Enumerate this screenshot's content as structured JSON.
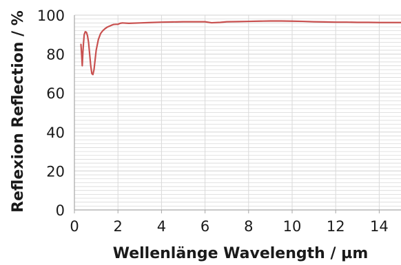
{
  "chart_data": {
    "type": "line",
    "title": "",
    "xlabel": "Wellenlänge Wavelength / µm",
    "ylabel": "Reflexion Reflection / %",
    "xlim": [
      0,
      15
    ],
    "ylim": [
      0,
      100
    ],
    "x_ticks": [
      0,
      2,
      4,
      6,
      8,
      10,
      12,
      14
    ],
    "x_tick_labels": [
      "0",
      "2",
      "4",
      "6",
      "8",
      "10",
      "12",
      "14"
    ],
    "y_ticks": [
      0,
      20,
      40,
      60,
      80,
      100
    ],
    "y_tick_labels": [
      "0",
      "20",
      "40",
      "60",
      "80",
      "100"
    ],
    "minor_y_step": 2,
    "grid": true,
    "legend": "none",
    "colors": {
      "line": "#c8504f",
      "grid": "#d9d9d9",
      "axis": "#a6a6a6"
    },
    "series": [
      {
        "points": [
          [
            0.3,
            85
          ],
          [
            0.33,
            80
          ],
          [
            0.36,
            74
          ],
          [
            0.39,
            81
          ],
          [
            0.42,
            86
          ],
          [
            0.45,
            90
          ],
          [
            0.5,
            91.5
          ],
          [
            0.55,
            91.2
          ],
          [
            0.6,
            89.5
          ],
          [
            0.65,
            86
          ],
          [
            0.7,
            80
          ],
          [
            0.75,
            74
          ],
          [
            0.8,
            70
          ],
          [
            0.85,
            69.5
          ],
          [
            0.9,
            72
          ],
          [
            0.95,
            77
          ],
          [
            1.0,
            82
          ],
          [
            1.1,
            87.5
          ],
          [
            1.2,
            90.5
          ],
          [
            1.3,
            92
          ],
          [
            1.4,
            93
          ],
          [
            1.5,
            93.8
          ],
          [
            1.6,
            94.3
          ],
          [
            1.7,
            94.8
          ],
          [
            1.8,
            95.2
          ],
          [
            1.9,
            95.3
          ],
          [
            2.0,
            95.3
          ],
          [
            2.1,
            95.8
          ],
          [
            2.2,
            96.0
          ],
          [
            2.5,
            95.8
          ],
          [
            3.0,
            96.0
          ],
          [
            3.5,
            96.2
          ],
          [
            4.0,
            96.4
          ],
          [
            4.5,
            96.5
          ],
          [
            5.0,
            96.6
          ],
          [
            5.5,
            96.6
          ],
          [
            6.0,
            96.6
          ],
          [
            6.3,
            96.1
          ],
          [
            6.7,
            96.3
          ],
          [
            7.0,
            96.6
          ],
          [
            7.5,
            96.7
          ],
          [
            8.0,
            96.8
          ],
          [
            8.5,
            96.9
          ],
          [
            9.0,
            97.0
          ],
          [
            9.5,
            97.0
          ],
          [
            10.0,
            96.9
          ],
          [
            10.5,
            96.8
          ],
          [
            11.0,
            96.6
          ],
          [
            11.5,
            96.5
          ],
          [
            12.0,
            96.4
          ],
          [
            12.5,
            96.4
          ],
          [
            13.0,
            96.3
          ],
          [
            13.5,
            96.3
          ],
          [
            14.0,
            96.2
          ],
          [
            14.5,
            96.2
          ],
          [
            15.0,
            96.2
          ]
        ]
      }
    ]
  }
}
